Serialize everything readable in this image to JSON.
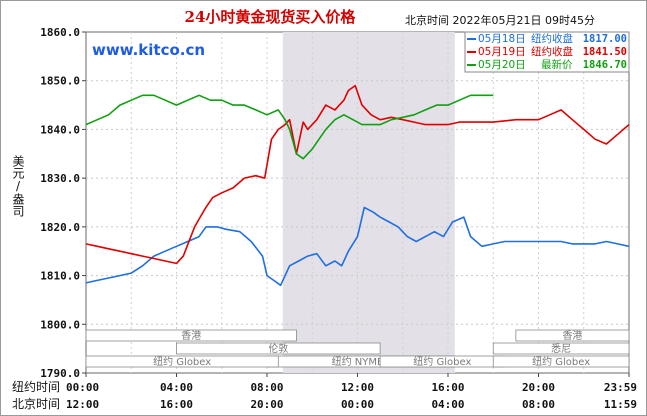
{
  "header": {
    "title": "24小时黄金现货买入价格",
    "timestamp": "北京时间  2022年05月21日 09时45分",
    "watermark": "www.kitco.cn"
  },
  "legend": [
    {
      "date": "05月18日",
      "label": "纽约收盘",
      "value": "1817.00",
      "color": "#1f6fe0"
    },
    {
      "date": "05月19日",
      "label": "纽约收盘",
      "value": "1841.50",
      "color": "#e00000"
    },
    {
      "date": "05月20日",
      "label": "最新价",
      "value": "1846.70",
      "color": "#10a010"
    }
  ],
  "axes": {
    "ylabel": "美元/盎司",
    "xrow1_label": "纽约时间",
    "xrow2_label": "北京时间",
    "yticks": [
      "1860.0",
      "1850.0",
      "1840.0",
      "1830.0",
      "1820.0",
      "1810.0",
      "1800.0",
      "1790.0"
    ],
    "xticks_ny": [
      "00:00",
      "04:00",
      "08:00",
      "12:00",
      "16:00",
      "20:00",
      "23:59"
    ],
    "xticks_bj": [
      "12:00",
      "16:00",
      "20:00",
      "00:00",
      "04:00",
      "08:00",
      "11:59"
    ]
  },
  "sessions": [
    {
      "label": "香港"
    },
    {
      "label": "伦敦"
    },
    {
      "label": "纽约 NYMEX"
    },
    {
      "label": "纽约 Globex"
    },
    {
      "label": "纽约 Globex"
    },
    {
      "label": "香港"
    },
    {
      "label": "悉尼"
    },
    {
      "label": "纽约 Globex"
    }
  ],
  "chart_data": {
    "type": "line",
    "title": "24小时黄金现货买入价格",
    "ylabel": "美元/盎司",
    "ylim": [
      1790,
      1860
    ],
    "xlim": [
      0,
      24
    ],
    "shaded_x_range": [
      8.7,
      16.3
    ],
    "grid": true,
    "series": [
      {
        "name": "05月18日",
        "color": "#1f6fe0",
        "x": [
          0,
          0.5,
          1,
          1.5,
          2,
          2.5,
          3,
          3.5,
          4,
          4.5,
          5,
          5.3,
          5.8,
          6.2,
          6.8,
          7.3,
          7.8,
          8.0,
          8.3,
          8.6,
          9.0,
          9.4,
          9.8,
          10.2,
          10.6,
          11.0,
          11.3,
          11.6,
          12.0,
          12.3,
          12.7,
          13.0,
          13.4,
          13.8,
          14.2,
          14.6,
          15.0,
          15.4,
          15.8,
          16.2,
          16.7,
          17.0,
          17.5,
          18.0,
          18.5,
          19,
          20,
          21,
          21.5,
          22,
          22.5,
          23,
          23.5,
          24
        ],
        "y": [
          1808.5,
          1809,
          1809.5,
          1810,
          1810.5,
          1812,
          1814,
          1815,
          1816,
          1817,
          1818,
          1820,
          1820,
          1819.5,
          1819,
          1817,
          1814,
          1810,
          1809,
          1808,
          1812,
          1813,
          1814,
          1814.5,
          1812,
          1813,
          1812,
          1815,
          1818,
          1824,
          1823,
          1822,
          1821,
          1820,
          1818,
          1817,
          1818,
          1819,
          1818,
          1821,
          1822,
          1818,
          1816,
          1816.5,
          1817,
          1817,
          1817,
          1817,
          1816.5,
          1816.5,
          1816.5,
          1817,
          1816.5,
          1816
        ]
      },
      {
        "name": "05月19日",
        "color": "#e00000",
        "x": [
          0,
          0.5,
          1,
          1.5,
          2,
          2.5,
          3,
          3.5,
          4,
          4.3,
          4.8,
          5.3,
          5.6,
          6.0,
          6.5,
          7.0,
          7.5,
          7.9,
          8.2,
          8.5,
          8.8,
          9.0,
          9.3,
          9.6,
          9.8,
          10.2,
          10.6,
          11.0,
          11.4,
          11.6,
          11.9,
          12.2,
          12.6,
          13.0,
          13.5,
          14.0,
          14.5,
          15.0,
          15.5,
          16.0,
          16.5,
          17.0,
          17.5,
          18.0,
          19,
          20,
          20.5,
          21,
          21.5,
          22,
          22.5,
          23,
          23.5,
          24
        ],
        "y": [
          1816.5,
          1816,
          1815.5,
          1815,
          1814.5,
          1814,
          1813.5,
          1813,
          1812.5,
          1814,
          1820,
          1824,
          1826,
          1827,
          1828,
          1830,
          1830.5,
          1830,
          1838,
          1840,
          1841,
          1842,
          1835,
          1841.5,
          1840,
          1842,
          1845,
          1844,
          1846,
          1848,
          1849,
          1845,
          1843,
          1842,
          1842.5,
          1842,
          1841.5,
          1841,
          1841,
          1841,
          1841.5,
          1841.5,
          1841.5,
          1841.5,
          1842,
          1842,
          1843,
          1844,
          1842,
          1840,
          1838,
          1837,
          1839,
          1841
        ]
      },
      {
        "name": "05月20日",
        "color": "#10a010",
        "x": [
          0,
          0.5,
          1,
          1.5,
          2,
          2.5,
          3,
          3.5,
          4,
          4.5,
          5,
          5.5,
          6.0,
          6.5,
          7.0,
          7.5,
          8.0,
          8.5,
          8.8,
          9.0,
          9.3,
          9.6,
          10.0,
          10.3,
          10.6,
          11.0,
          11.4,
          11.8,
          12.2,
          12.6,
          13.0,
          13.5,
          14.0,
          14.5,
          15.0,
          15.5,
          16.0,
          16.5,
          17.0,
          17.5,
          18.0
        ],
        "y": [
          1841,
          1842,
          1843,
          1845,
          1846,
          1847,
          1847,
          1846,
          1845,
          1846,
          1847,
          1846,
          1846,
          1845,
          1845,
          1844,
          1843,
          1844,
          1842,
          1840,
          1835,
          1834,
          1836,
          1838,
          1840,
          1842,
          1843,
          1842,
          1841,
          1841,
          1841,
          1842,
          1842.5,
          1843,
          1844,
          1845,
          1845,
          1846,
          1847,
          1847,
          1847
        ]
      }
    ]
  }
}
